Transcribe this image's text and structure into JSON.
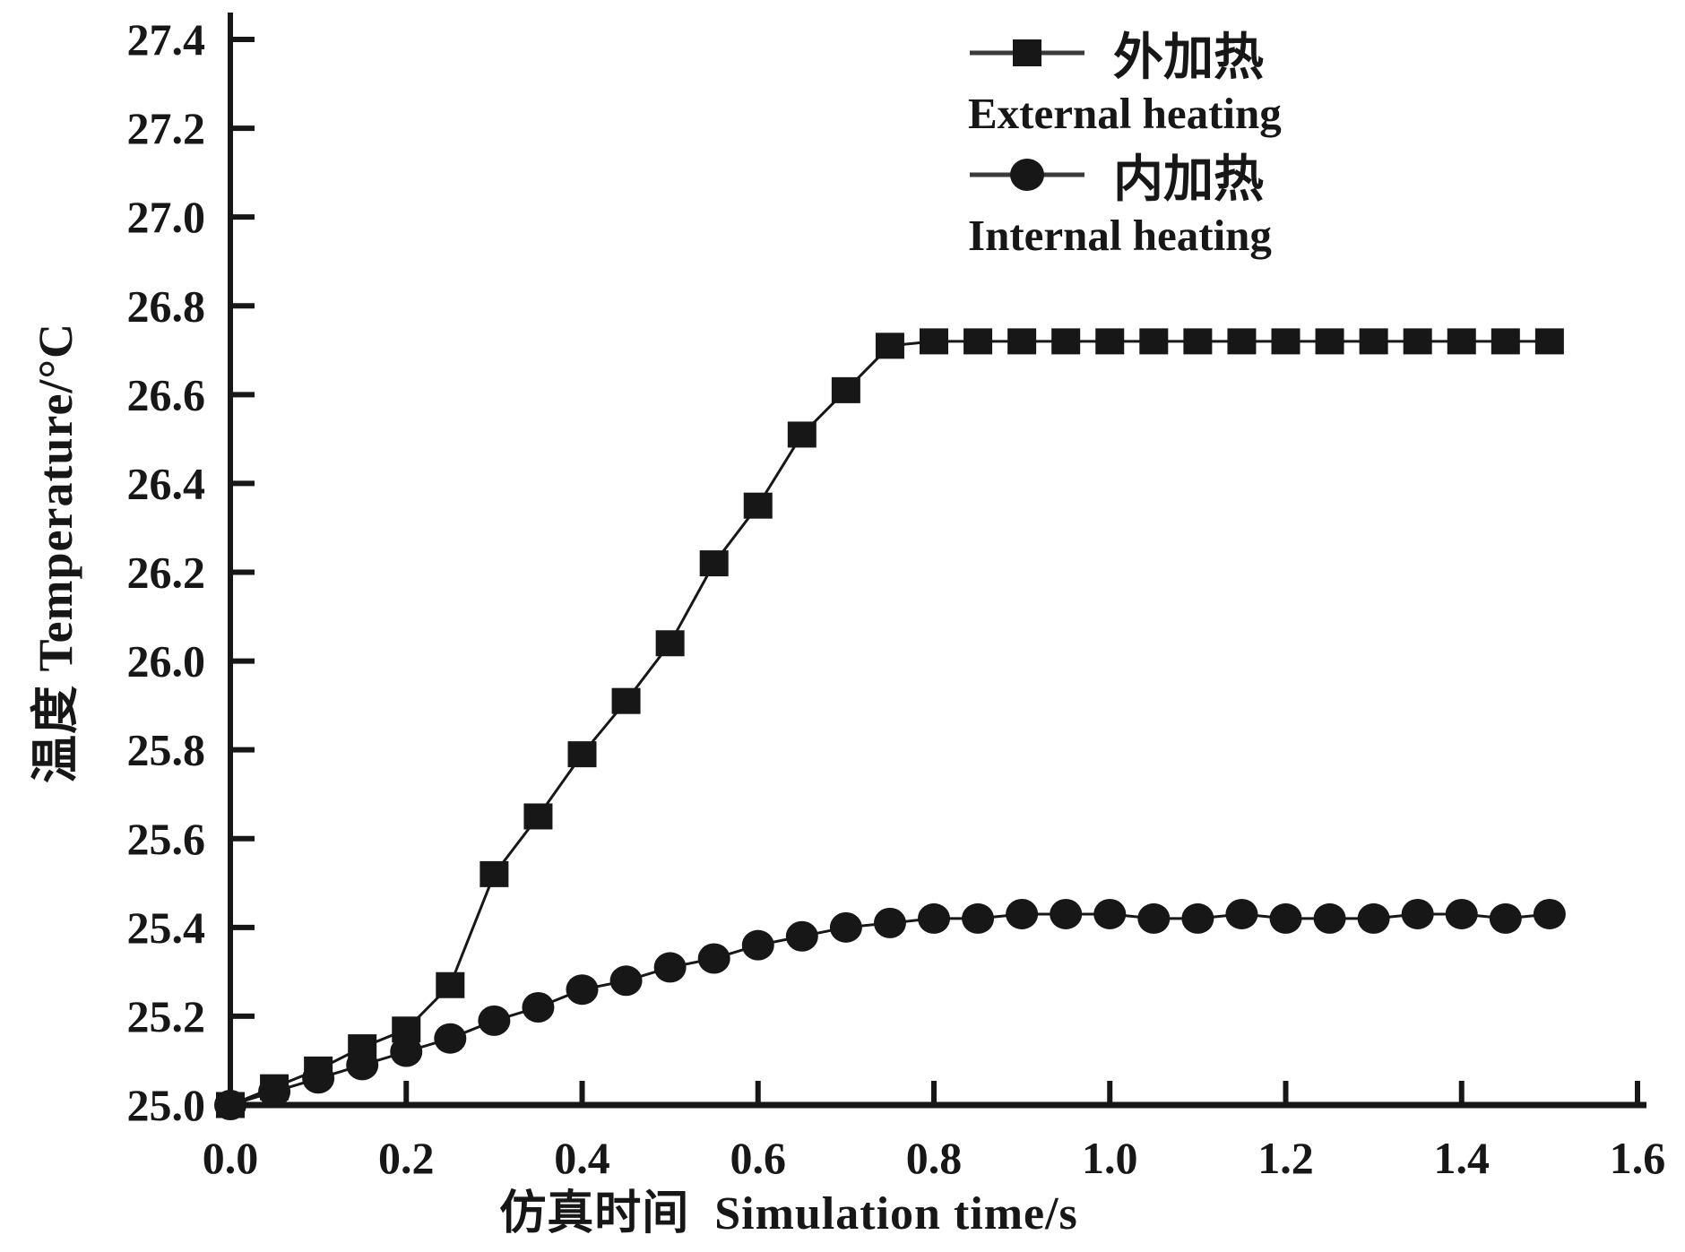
{
  "figure": {
    "background": "#ffffff",
    "ink_color": "#171717"
  },
  "chart_data": {
    "type": "line",
    "title": "",
    "xlabel": "仿真时间  Simulation time/s",
    "ylabel": "温度 Temperature/°C",
    "xlim": [
      0,
      1.6
    ],
    "ylim": [
      25.0,
      27.4
    ],
    "grid": false,
    "legend_position": "top-right",
    "xtick_labels": [
      "0.0",
      "0.2",
      "0.4",
      "0.6",
      "0.8",
      "1.0",
      "1.2",
      "1.4",
      "1.6"
    ],
    "ytick_labels": [
      "25.0",
      "25.2",
      "25.4",
      "25.6",
      "25.8",
      "26.0",
      "26.2",
      "26.4",
      "26.6",
      "26.8",
      "27.0",
      "27.2",
      "27.4"
    ],
    "x": [
      0.0,
      0.05,
      0.1,
      0.15,
      0.2,
      0.25,
      0.3,
      0.35,
      0.4,
      0.45,
      0.5,
      0.55,
      0.6,
      0.65,
      0.7,
      0.75,
      0.8,
      0.85,
      0.9,
      0.95,
      1.0,
      1.05,
      1.1,
      1.15,
      1.2,
      1.25,
      1.3,
      1.35,
      1.4,
      1.45,
      1.5
    ],
    "series": [
      {
        "label_zh": "外加热",
        "label_en": "External heating",
        "marker": "square",
        "color": "#171717",
        "values": [
          25.0,
          25.04,
          25.08,
          25.13,
          25.17,
          25.27,
          25.52,
          25.65,
          25.79,
          25.91,
          26.04,
          26.22,
          26.35,
          26.51,
          26.61,
          26.71,
          26.72,
          26.72,
          26.72,
          26.72,
          26.72,
          26.72,
          26.72,
          26.72,
          26.72,
          26.72,
          26.72,
          26.72,
          26.72,
          26.72,
          26.72
        ]
      },
      {
        "label_zh": "内加热",
        "label_en": "Internal heating",
        "marker": "circle",
        "color": "#171717",
        "values": [
          25.0,
          25.03,
          25.06,
          25.09,
          25.12,
          25.15,
          25.19,
          25.22,
          25.26,
          25.28,
          25.31,
          25.33,
          25.36,
          25.38,
          25.4,
          25.41,
          25.42,
          25.42,
          25.43,
          25.43,
          25.43,
          25.42,
          25.42,
          25.43,
          25.42,
          25.42,
          25.42,
          25.43,
          25.43,
          25.42,
          25.43
        ]
      }
    ]
  }
}
